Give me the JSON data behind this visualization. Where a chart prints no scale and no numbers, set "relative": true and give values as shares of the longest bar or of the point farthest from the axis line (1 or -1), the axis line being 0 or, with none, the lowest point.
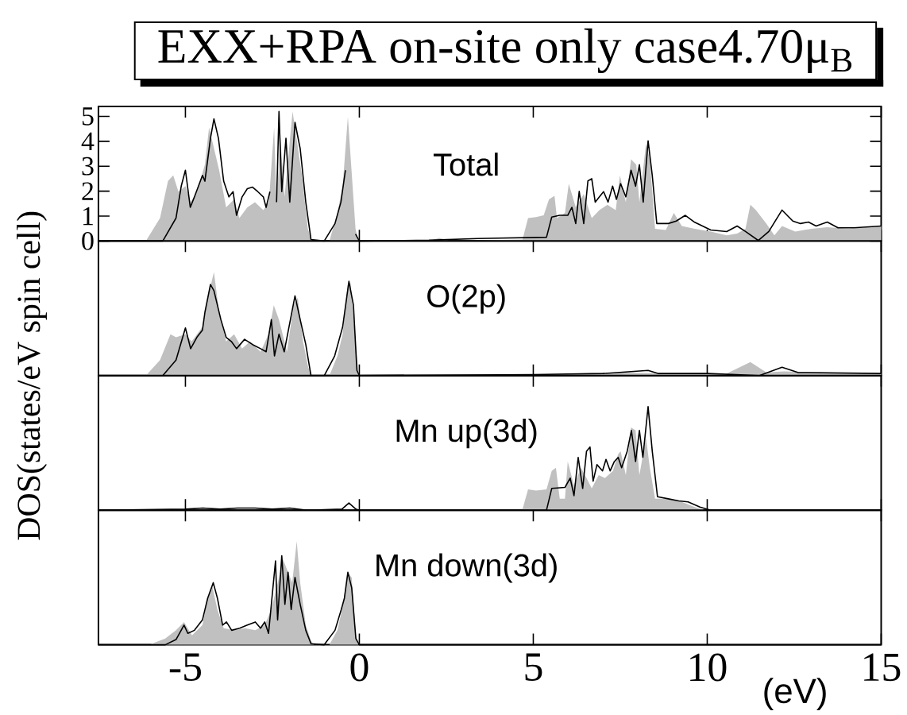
{
  "chart_data": [
    {
      "type": "area",
      "title": "EXX+RPA on-site only case4.70μ$_{B}$",
      "ylabel": "DOS(states/eV spin cell)",
      "annotations": [
        "Total"
      ],
      "xlim": [
        -7.5,
        15
      ],
      "xticks": [
        -5,
        0,
        5,
        10,
        15
      ],
      "ylim": [
        0,
        5.4
      ],
      "yticks": [
        0,
        1,
        2,
        3,
        4,
        5
      ],
      "tick_labels": "y",
      "series": [
        {
          "color": "#c0c0c0",
          "x": [
            -6.11,
            -5.73,
            -5.5,
            -5.35,
            -5.2,
            -5.0,
            -4.85,
            -4.67,
            -4.44,
            -4.32,
            -4.18,
            -4.03,
            -3.83,
            -3.6,
            -3.45,
            -3.22,
            -3.0,
            -2.76,
            -2.6,
            -2.45,
            -2.38,
            -2.27,
            -2.15,
            -1.92,
            -1.8,
            -1.65,
            -1.48,
            -1.36,
            -0.86,
            -0.63,
            -0.48,
            -0.33,
            -0.3,
            -0.18,
            -0.11,
            -0.03,
            2.0,
            2.3,
            2.6,
            4.69,
            4.85,
            5.08,
            5.3,
            5.45,
            5.61,
            5.68,
            5.91,
            6.02,
            6.22,
            6.45,
            6.68,
            6.9,
            7.13,
            7.37,
            7.49,
            7.66,
            7.81,
            7.96,
            8.05,
            8.24,
            8.35,
            8.5,
            8.81,
            9.04,
            9.27,
            9.64,
            10.1,
            10.56,
            10.86,
            11.1,
            11.24,
            11.4,
            11.7,
            11.93,
            12.15,
            12.53,
            12.99,
            13.45,
            14.06,
            15
          ],
          "values": [
            0.06,
            0.92,
            2.41,
            2.63,
            1.98,
            2.2,
            1.56,
            1.98,
            3.06,
            4.55,
            null,
            2.84,
            1.35,
            1.67,
            0.92,
            1.35,
            1.56,
            1.24,
            1.56,
            4.55,
            1.56,
            4.12,
            1.77,
            5.2,
            null,
            2.63,
            0.49,
            0,
            0,
            1.13,
            2.2,
            4.98,
            null,
            null,
            0.49,
            0,
            0,
            0.12,
            0,
            0.06,
            0.92,
            0.96,
            1.03,
            1.67,
            1.81,
            0.92,
            1.13,
            2.3,
            1.35,
            1.88,
            0.92,
            1.24,
            1.45,
            1.24,
            2.63,
            1.56,
            3.28,
            3.06,
            1.56,
            3.9,
            3.28,
            0.49,
            0.44,
            1.13,
            0.6,
            0.49,
            0.38,
            0.23,
            0.3,
            0.49,
            1.45,
            1.24,
            0.7,
            0.23,
            0.6,
            0.38,
            0.49,
            0.55,
            0.49,
            0.6
          ]
        },
        {
          "type": "line",
          "color": "#000000",
          "x": [
            -7.5,
            -5.65,
            -5.27,
            -5.12,
            -5.0,
            -4.86,
            -4.74,
            -4.51,
            -4.44,
            -4.28,
            -4.18,
            -4.05,
            -3.9,
            -3.75,
            -3.63,
            -3.53,
            -3.37,
            -3.22,
            -3.07,
            -2.92,
            -2.76,
            -2.68,
            -2.57,
            -2.44,
            -2.38,
            -2.31,
            -2.23,
            -2.11,
            -2.0,
            -1.85,
            -1.7,
            -1.54,
            -1.39,
            -1.01,
            -0.7,
            -0.53,
            -0.4,
            -0.3,
            -0.21,
            -0.11,
            0,
            2.0,
            3.4,
            5.38,
            5.53,
            5.76,
            5.99,
            6.11,
            6.22,
            6.32,
            6.45,
            6.57,
            6.68,
            6.78,
            6.9,
            7.02,
            7.15,
            7.28,
            7.39,
            7.51,
            7.66,
            7.81,
            7.94,
            8.05,
            8.16,
            8.3,
            8.42,
            8.55,
            8.88,
            9.11,
            9.37,
            9.64,
            10.1,
            10.56,
            10.86,
            11.1,
            11.47,
            11.77,
            12.15,
            12.46,
            12.68,
            12.91,
            13.13,
            13.45,
            13.76,
            14.21,
            15
          ],
          "values": [
            0,
            0,
            0.92,
            2.2,
            2.84,
            1.35,
            1.77,
            2.63,
            2.4,
            4.12,
            4.9,
            4.12,
            2.4,
            1.77,
            1.98,
            1.03,
            1.77,
            2.1,
            2.16,
            1.98,
            1.77,
            1.35,
            1.98,
            null,
            1.56,
            5.2,
            1.98,
            4.12,
            1.56,
            4.76,
            3.7,
            1.56,
            0.06,
            0,
            0.7,
            1.56,
            2.84,
            null,
            null,
            0.28,
            0,
            0.03,
            0.1,
            0.15,
            0.96,
            1.03,
            1.03,
            1.35,
            0.7,
            1.99,
            0.7,
            2.41,
            2.5,
            1.56,
            1.77,
            1.98,
            1.56,
            2.2,
            1.67,
            2.3,
            1.77,
            2.84,
            2.2,
            3.06,
            1.56,
            4.02,
            2.63,
            0.7,
            0.7,
            0.8,
            1.03,
            0.75,
            0.44,
            0.38,
            0.6,
            0.38,
            0.02,
            0.38,
            1.24,
            0.8,
            0.7,
            0.76,
            0.6,
            0.76,
            0.53,
            0.53,
            0.6
          ]
        }
      ]
    },
    {
      "type": "area",
      "relative": true,
      "annotations": [
        "O(2p)"
      ],
      "xlim": [
        -7.5,
        15
      ],
      "xticks": [
        -5,
        0,
        5,
        10,
        15
      ],
      "tick_labels": false,
      "series": [
        {
          "color": "#c0c0c0",
          "x": [
            -6.11,
            -5.73,
            -5.43,
            -5.27,
            -5.0,
            -4.82,
            -4.51,
            -4.36,
            -4.18,
            -4.03,
            -3.83,
            -3.6,
            -3.37,
            -3.14,
            -2.84,
            -2.61,
            -2.46,
            -2.31,
            -2.08,
            -1.89,
            -1.77,
            -1.62,
            -1.47,
            -1.35,
            -0.86,
            -0.63,
            -0.48,
            -0.33,
            -0.25,
            -0.13,
            -0.02,
            5.0,
            7.5,
            10.5,
            11.24,
            11.7,
            12.2,
            15
          ],
          "values": [
            0.01,
            0.15,
            0.4,
            0.37,
            0.4,
            0.33,
            0.47,
            0.75,
            1,
            0.61,
            0.33,
            0.4,
            0.26,
            0.33,
            0.23,
            0.4,
            0.68,
            0.54,
            0.23,
            0.68,
            0.75,
            0.33,
            0.08,
            0,
            0,
            0.19,
            0.4,
            0.89,
            0.89,
            0.4,
            0,
            0.01,
            0.03,
            0.01,
            0.13,
            0.03,
            0.04,
            0.02
          ]
        },
        {
          "type": "line",
          "color": "#000000",
          "x": [
            -7.5,
            -5.65,
            -5.27,
            -5.0,
            -4.85,
            -4.67,
            -4.51,
            -4.44,
            -4.28,
            -4.18,
            -3.98,
            -3.83,
            -3.68,
            -3.53,
            -3.3,
            -3.07,
            -2.84,
            -2.68,
            -2.53,
            -2.44,
            -2.31,
            -2.16,
            -1.85,
            -1.7,
            -1.54,
            -1.39,
            -1.01,
            -0.71,
            -0.48,
            -0.3,
            -0.17,
            -0.07,
            0,
            5.0,
            7.0,
            8.3,
            8.6,
            10.0,
            11.5,
            12.15,
            12.6,
            15
          ],
          "values": [
            0,
            0,
            0.15,
            0.46,
            0.26,
            0.37,
            0.44,
            0.61,
            0.88,
            0.82,
            0.54,
            0.37,
            0.33,
            0.26,
            0.35,
            0.3,
            0.26,
            0.23,
            0.54,
            0.19,
            0.4,
            0.23,
            0.77,
            0.54,
            0.3,
            0,
            0,
            0.19,
            0.47,
            0.91,
            0.68,
            0.05,
            0,
            0.01,
            0.02,
            0.05,
            0.02,
            0.02,
            0,
            0.08,
            0.03,
            0.02
          ]
        }
      ]
    },
    {
      "type": "area",
      "relative": true,
      "annotations": [
        "Mn up(3d)"
      ],
      "xlim": [
        -7.5,
        15
      ],
      "xticks": [
        -5,
        0,
        5,
        10,
        15
      ],
      "tick_labels": false,
      "series": [
        {
          "color": "#c0c0c0",
          "x": [
            4.69,
            4.85,
            5.08,
            5.38,
            5.53,
            5.65,
            5.76,
            5.91,
            5.99,
            6.17,
            6.37,
            6.53,
            6.68,
            6.88,
            7.06,
            7.29,
            7.44,
            7.51,
            7.66,
            7.81,
            7.94,
            8.05,
            8.24,
            8.35,
            8.5,
            8.88,
            9.27,
            9.64,
            9.94
          ],
          "values": [
            0.01,
            0.2,
            0.19,
            0.2,
            0.38,
            0.41,
            0.11,
            0.11,
            0.47,
            0.24,
            0.41,
            0.31,
            0.21,
            0.34,
            0.31,
            0.38,
            0.54,
            0.57,
            0.34,
            0.8,
            0.77,
            0.34,
            0.7,
            0.41,
            0.11,
            0.11,
            0.08,
            0.03,
            0
          ]
        },
        {
          "type": "line",
          "color": "#000000",
          "x": [
            -7.5,
            -5,
            -4.5,
            -4,
            -3.5,
            -3,
            -2.5,
            -2,
            -1.5,
            -0.5,
            -0.3,
            -0.1,
            0,
            5.38,
            5.53,
            5.91,
            6.06,
            6.17,
            6.29,
            6.42,
            6.53,
            6.63,
            6.72,
            6.83,
            6.99,
            7.09,
            7.21,
            7.33,
            7.44,
            7.54,
            7.7,
            7.82,
            7.94,
            8.05,
            8.15,
            8.3,
            8.42,
            8.57,
            8.88,
            9.18,
            9.45,
            9.79,
            10.1,
            15
          ],
          "values": [
            0,
            0.01,
            0.02,
            0.01,
            0.02,
            0.02,
            0.01,
            0.02,
            0,
            0.01,
            0.07,
            0.01,
            0,
            0,
            0.21,
            0.22,
            0.31,
            0.14,
            0.51,
            0.21,
            0.57,
            0.61,
            0.28,
            0.44,
            0.38,
            0.49,
            0.38,
            0.47,
            0.51,
            0.41,
            0.57,
            0.77,
            0.47,
            0.77,
            0.51,
            1,
            0.57,
            0.13,
            0.11,
            0.09,
            0.08,
            0.03,
            0,
            0
          ]
        }
      ]
    },
    {
      "type": "area",
      "relative": true,
      "annotations": [
        "Mn down(3d)"
      ],
      "xlabel": "(eV)",
      "xlim": [
        -7.5,
        15
      ],
      "xticks": [
        -5,
        0,
        5,
        10,
        15
      ],
      "tick_labels": "x",
      "series": [
        {
          "color": "#c0c0c0",
          "x": [
            -6.04,
            -5.58,
            -5.27,
            -5.04,
            -4.81,
            -4.51,
            -4.36,
            -4.23,
            -4.08,
            -3.9,
            -3.59,
            -3.29,
            -2.99,
            -2.72,
            -2.53,
            -2.31,
            -2.2,
            -1.93,
            -1.8,
            -1.7,
            -1.54,
            -1.39,
            -1.31,
            -0.86,
            -0.63,
            -0.48,
            -0.33,
            -0.22,
            -0.1,
            -0.03
          ],
          "values": [
            0,
            0.06,
            0.14,
            0.22,
            0.09,
            0.19,
            0.45,
            0.57,
            0.34,
            0.16,
            0.14,
            0.16,
            0.14,
            0.19,
            0.34,
            0.65,
            0.83,
            0.6,
            1,
            0.6,
            0.19,
            0.04,
            0,
            0,
            0.14,
            0.37,
            0.7,
            0.65,
            0.09,
            0
          ]
        },
        {
          "type": "line",
          "color": "#000000",
          "x": [
            -7.5,
            -5.58,
            -5.27,
            -5.04,
            -4.93,
            -4.74,
            -4.51,
            -4.36,
            -4.2,
            -4.08,
            -3.93,
            -3.82,
            -3.67,
            -3.44,
            -3.22,
            -2.99,
            -2.84,
            -2.72,
            -2.61,
            -2.41,
            -2.35,
            -2.23,
            -2.14,
            -2.05,
            -1.96,
            -1.85,
            -1.7,
            -1.54,
            -1.39,
            -1.01,
            -0.7,
            -0.52,
            -0.43,
            -0.33,
            -0.22,
            -0.1,
            0,
            15
          ],
          "values": [
            0,
            0,
            0.05,
            0.19,
            0.11,
            0.14,
            0.24,
            0.45,
            0.6,
            0.45,
            0.19,
            0.22,
            0.14,
            0.16,
            0.19,
            0.22,
            0.16,
            0.22,
            0.11,
            0.81,
            0.24,
            0.86,
            0.39,
            0.7,
            0.34,
            0.65,
            0.39,
            0.14,
            0.01,
            0,
            0.14,
            0.34,
            0.45,
            0.7,
            0.55,
            0.06,
            0,
            0
          ]
        }
      ]
    }
  ]
}
